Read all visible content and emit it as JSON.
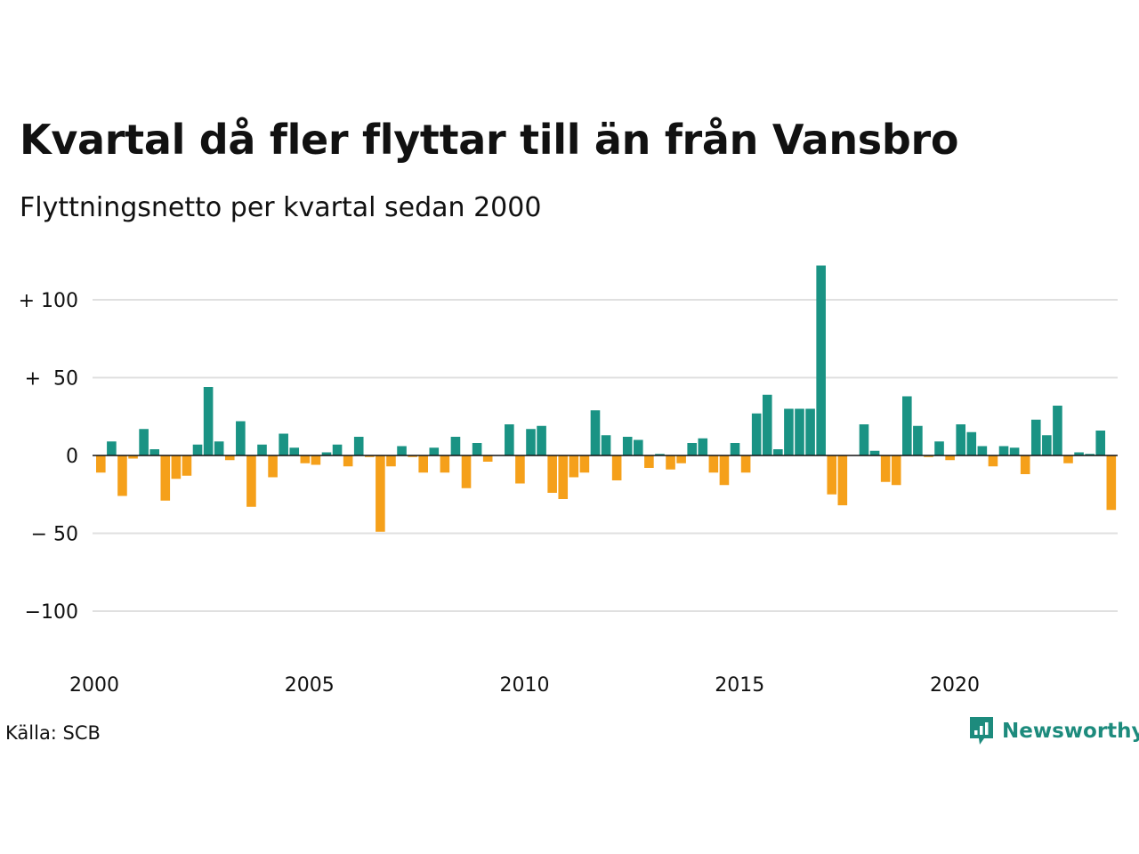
{
  "title": "Kvartal då fler flyttar till än från Vansbro",
  "subtitle": "Flyttningsnetto per kvartal sedan 2000",
  "source": "Källa: SCB",
  "brand": {
    "name": "Newsworthy",
    "icon": "newsworthy-logo-icon",
    "color": "#1d8b7d"
  },
  "colors": {
    "positive": "#1a9384",
    "negative": "#f5a01a",
    "grid": "#e0e0e0",
    "zero_line": "#111111"
  },
  "chart_data": {
    "type": "bar",
    "title": "Kvartal då fler flyttar till än från Vansbro",
    "subtitle": "Flyttningsnetto per kvartal sedan 2000",
    "xlabel": "",
    "ylabel": "",
    "ylim": [
      -130,
      122
    ],
    "xlim": [
      2000,
      2024
    ],
    "grid": true,
    "y_ticks": [
      {
        "value": 100,
        "label": "+ 100"
      },
      {
        "value": 50,
        "label": "+  50"
      },
      {
        "value": 0,
        "label": "0"
      },
      {
        "value": -50,
        "label": "− 50"
      },
      {
        "value": -100,
        "label": "−100"
      }
    ],
    "x_ticks": [
      {
        "value": 2000,
        "label": "2000"
      },
      {
        "value": 2005,
        "label": "2005"
      },
      {
        "value": 2010,
        "label": "2010"
      },
      {
        "value": 2015,
        "label": "2015"
      },
      {
        "value": 2020,
        "label": "2020"
      }
    ],
    "categories": [
      "2000 K1",
      "2000 K2",
      "2000 K3",
      "2000 K4",
      "2001 K1",
      "2001 K2",
      "2001 K3",
      "2001 K4",
      "2002 K1",
      "2002 K2",
      "2002 K3",
      "2002 K4",
      "2003 K1",
      "2003 K2",
      "2003 K3",
      "2003 K4",
      "2004 K1",
      "2004 K2",
      "2004 K3",
      "2004 K4",
      "2005 K1",
      "2005 K2",
      "2005 K3",
      "2005 K4",
      "2006 K1",
      "2006 K2",
      "2006 K3",
      "2006 K4",
      "2007 K1",
      "2007 K2",
      "2007 K3",
      "2007 K4",
      "2008 K1",
      "2008 K2",
      "2008 K3",
      "2008 K4",
      "2009 K1",
      "2009 K2",
      "2009 K3",
      "2009 K4",
      "2010 K1",
      "2010 K2",
      "2010 K3",
      "2010 K4",
      "2011 K1",
      "2011 K2",
      "2011 K3",
      "2011 K4",
      "2012 K1",
      "2012 K2",
      "2012 K3",
      "2012 K4",
      "2013 K1",
      "2013 K2",
      "2013 K3",
      "2013 K4",
      "2014 K1",
      "2014 K2",
      "2014 K3",
      "2014 K4",
      "2015 K1",
      "2015 K2",
      "2015 K3",
      "2015 K4",
      "2016 K1",
      "2016 K2",
      "2016 K3",
      "2016 K4",
      "2017 K1",
      "2017 K2",
      "2017 K3",
      "2017 K4",
      "2018 K1",
      "2018 K2",
      "2018 K3",
      "2018 K4",
      "2019 K1",
      "2019 K2",
      "2019 K3",
      "2019 K4",
      "2020 K1",
      "2020 K2",
      "2020 K3",
      "2020 K4",
      "2021 K1",
      "2021 K2",
      "2021 K3",
      "2021 K4",
      "2022 K1",
      "2022 K2",
      "2022 K3",
      "2022 K4",
      "2023 K1",
      "2023 K2",
      "2023 K3",
      "2023 K4"
    ],
    "values": [
      -11,
      9,
      -26,
      -2,
      17,
      4,
      -29,
      -15,
      -13,
      7,
      44,
      9,
      -3,
      22,
      -33,
      7,
      -14,
      14,
      5,
      -5,
      -6,
      2,
      7,
      -7,
      12,
      -1,
      -49,
      -7,
      6,
      -1,
      -11,
      5,
      -11,
      12,
      -21,
      8,
      -4,
      0,
      20,
      -18,
      17,
      19,
      -24,
      -28,
      -14,
      -11,
      29,
      13,
      -16,
      12,
      10,
      -8,
      1,
      -9,
      -5,
      8,
      11,
      -11,
      -19,
      8,
      -11,
      27,
      39,
      4,
      30,
      30,
      30,
      122,
      -25,
      -32,
      0,
      20,
      3,
      -17,
      -19,
      38,
      19,
      -1,
      9,
      -3,
      20,
      15,
      6,
      -7,
      6,
      5,
      -12,
      23,
      13,
      32,
      -5,
      2,
      1,
      16,
      -35,
      0
    ]
  }
}
